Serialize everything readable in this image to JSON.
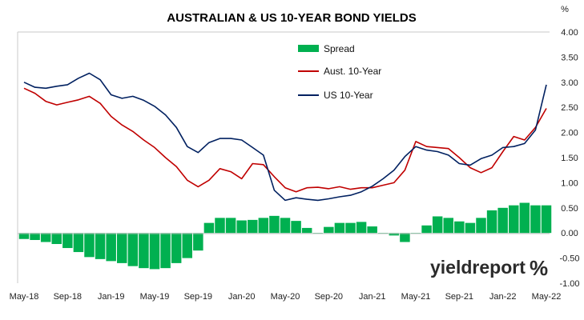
{
  "chart_data": {
    "type": "line",
    "title": "AUSTRALIAN & US 10-YEAR BOND YIELDS",
    "y_unit": "%",
    "ylim": [
      -1.0,
      4.0
    ],
    "y_ticks": [
      "4.00",
      "3.50",
      "3.00",
      "2.50",
      "2.00",
      "1.50",
      "1.00",
      "0.50",
      "0.00",
      "-0.50",
      "-1.00"
    ],
    "x_ticks": [
      "May-18",
      "Sep-18",
      "Jan-19",
      "May-19",
      "Sep-19",
      "Jan-20",
      "May-20",
      "Sep-20",
      "Jan-21",
      "May-21",
      "Sep-21",
      "Jan-22",
      "May-22"
    ],
    "x_range": [
      "2018-05",
      "2022-05"
    ],
    "legend_position": "top-center",
    "grid": false,
    "series": [
      {
        "name": "Spread",
        "kind": "bar",
        "color": "#00b050",
        "points": [
          [
            0,
            -0.12
          ],
          [
            1,
            -0.14
          ],
          [
            2,
            -0.18
          ],
          [
            3,
            -0.22
          ],
          [
            4,
            -0.3
          ],
          [
            5,
            -0.38
          ],
          [
            6,
            -0.48
          ],
          [
            7,
            -0.52
          ],
          [
            8,
            -0.56
          ],
          [
            9,
            -0.6
          ],
          [
            10,
            -0.66
          ],
          [
            11,
            -0.7
          ],
          [
            12,
            -0.72
          ],
          [
            13,
            -0.7
          ],
          [
            14,
            -0.6
          ],
          [
            15,
            -0.5
          ],
          [
            16,
            -0.35
          ],
          [
            17,
            0.2
          ],
          [
            18,
            0.3
          ],
          [
            19,
            0.3
          ],
          [
            20,
            0.25
          ],
          [
            21,
            0.26
          ],
          [
            22,
            0.3
          ],
          [
            23,
            0.34
          ],
          [
            24,
            0.3
          ],
          [
            25,
            0.24
          ],
          [
            26,
            0.1
          ],
          [
            27,
            0.0
          ],
          [
            28,
            0.12
          ],
          [
            29,
            0.2
          ],
          [
            30,
            0.2
          ],
          [
            31,
            0.22
          ],
          [
            32,
            0.13
          ],
          [
            33,
            -0.02
          ],
          [
            34,
            -0.05
          ],
          [
            35,
            -0.18
          ],
          [
            36,
            -0.02
          ],
          [
            37,
            0.15
          ],
          [
            38,
            0.33
          ],
          [
            39,
            0.3
          ],
          [
            40,
            0.23
          ],
          [
            41,
            0.2
          ],
          [
            42,
            0.3
          ],
          [
            43,
            0.45
          ],
          [
            44,
            0.5
          ],
          [
            45,
            0.55
          ],
          [
            46,
            0.6
          ],
          [
            47,
            0.55
          ],
          [
            48,
            0.55
          ]
        ]
      },
      {
        "name": "Aust. 10-Year",
        "kind": "line",
        "color": "#c00000",
        "points": [
          [
            0,
            2.88
          ],
          [
            1,
            2.78
          ],
          [
            2,
            2.62
          ],
          [
            3,
            2.55
          ],
          [
            4,
            2.6
          ],
          [
            5,
            2.65
          ],
          [
            6,
            2.72
          ],
          [
            7,
            2.58
          ],
          [
            8,
            2.32
          ],
          [
            9,
            2.15
          ],
          [
            10,
            2.02
          ],
          [
            11,
            1.85
          ],
          [
            12,
            1.7
          ],
          [
            13,
            1.5
          ],
          [
            14,
            1.32
          ],
          [
            15,
            1.05
          ],
          [
            16,
            0.92
          ],
          [
            17,
            1.05
          ],
          [
            18,
            1.28
          ],
          [
            19,
            1.22
          ],
          [
            20,
            1.08
          ],
          [
            21,
            1.38
          ],
          [
            22,
            1.36
          ],
          [
            23,
            1.12
          ],
          [
            24,
            0.9
          ],
          [
            25,
            0.82
          ],
          [
            26,
            0.9
          ],
          [
            27,
            0.91
          ],
          [
            28,
            0.88
          ],
          [
            29,
            0.92
          ],
          [
            30,
            0.87
          ],
          [
            31,
            0.9
          ],
          [
            32,
            0.9
          ],
          [
            33,
            0.95
          ],
          [
            34,
            1.0
          ],
          [
            35,
            1.25
          ],
          [
            36,
            1.82
          ],
          [
            37,
            1.72
          ],
          [
            38,
            1.7
          ],
          [
            39,
            1.68
          ],
          [
            40,
            1.5
          ],
          [
            41,
            1.3
          ],
          [
            42,
            1.2
          ],
          [
            43,
            1.3
          ],
          [
            44,
            1.62
          ],
          [
            45,
            1.92
          ],
          [
            46,
            1.85
          ],
          [
            47,
            2.1
          ],
          [
            48,
            2.48
          ]
        ]
      },
      {
        "name": "US 10-Year",
        "kind": "line",
        "color": "#002060",
        "points": [
          [
            0,
            3.0
          ],
          [
            1,
            2.9
          ],
          [
            2,
            2.88
          ],
          [
            3,
            2.92
          ],
          [
            4,
            2.95
          ],
          [
            5,
            3.08
          ],
          [
            6,
            3.18
          ],
          [
            7,
            3.05
          ],
          [
            8,
            2.75
          ],
          [
            9,
            2.68
          ],
          [
            10,
            2.72
          ],
          [
            11,
            2.64
          ],
          [
            12,
            2.52
          ],
          [
            13,
            2.35
          ],
          [
            14,
            2.1
          ],
          [
            15,
            1.72
          ],
          [
            16,
            1.6
          ],
          [
            17,
            1.8
          ],
          [
            18,
            1.88
          ],
          [
            19,
            1.88
          ],
          [
            20,
            1.85
          ],
          [
            21,
            1.7
          ],
          [
            22,
            1.55
          ],
          [
            23,
            0.85
          ],
          [
            24,
            0.65
          ],
          [
            25,
            0.7
          ],
          [
            26,
            0.67
          ],
          [
            27,
            0.65
          ],
          [
            28,
            0.68
          ],
          [
            29,
            0.72
          ],
          [
            30,
            0.75
          ],
          [
            31,
            0.82
          ],
          [
            32,
            0.93
          ],
          [
            33,
            1.08
          ],
          [
            34,
            1.25
          ],
          [
            35,
            1.52
          ],
          [
            36,
            1.72
          ],
          [
            37,
            1.65
          ],
          [
            38,
            1.62
          ],
          [
            39,
            1.55
          ],
          [
            40,
            1.38
          ],
          [
            41,
            1.35
          ],
          [
            42,
            1.48
          ],
          [
            43,
            1.55
          ],
          [
            44,
            1.7
          ],
          [
            45,
            1.72
          ],
          [
            46,
            1.78
          ],
          [
            47,
            2.05
          ],
          [
            48,
            2.95
          ]
        ]
      }
    ]
  },
  "logo": {
    "text": "yieldreport",
    "symbol": "%"
  }
}
